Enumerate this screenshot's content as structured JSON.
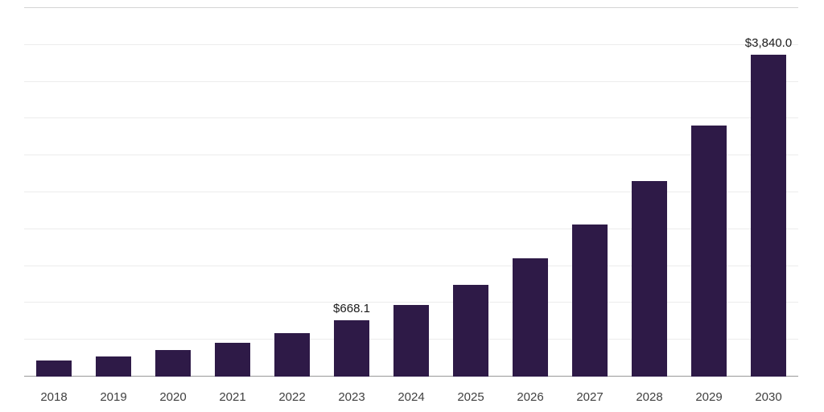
{
  "chart_data": {
    "type": "bar",
    "categories": [
      "2018",
      "2019",
      "2020",
      "2021",
      "2022",
      "2023",
      "2024",
      "2025",
      "2026",
      "2027",
      "2028",
      "2029",
      "2030"
    ],
    "values": [
      190,
      245,
      315,
      405,
      520,
      668.1,
      858,
      1100,
      1414,
      1816,
      2332,
      2994,
      3840
    ],
    "data_labels": {
      "2023": "$668.1",
      "2030": "$3,840.0"
    },
    "title": "",
    "xlabel": "",
    "ylabel": "",
    "ylim": [
      0,
      4400
    ],
    "gridline_step": 440,
    "grid": "horizontal",
    "legend": "none",
    "bar_color": "#2e1a47",
    "value_label_color": "#1a1a1a",
    "axis_tick_color": "#404040",
    "gridline_color": "#ececec",
    "top_gridline_color": "#d4d4d4",
    "axis_line_color": "#9a9a9a",
    "background_color": "#ffffff"
  }
}
